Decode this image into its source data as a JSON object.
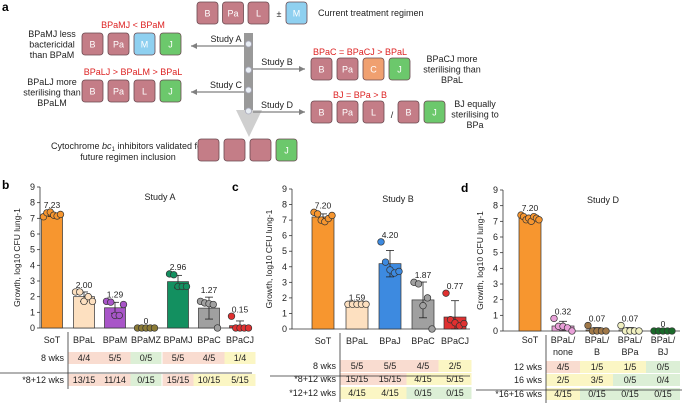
{
  "colors": {
    "drug_box": "#c47d87",
    "M": "#8fd0f0",
    "J": "#6cc86c",
    "C": "#f0a070",
    "cell_pink": "#f9dcd0",
    "cell_green": "#dcefd6",
    "cell_yellow": "#fbf6c4",
    "arrow": "#808080"
  },
  "panel_a": {
    "label": "a",
    "current": {
      "boxes": [
        "B",
        "Pa",
        "L"
      ],
      "plusminus": "±",
      "optional": "M",
      "text": "Current treatment regimen"
    },
    "study_a": {
      "arrow_label": "Study A",
      "comparison": "BPaMJ < BPaM",
      "boxes": [
        "B",
        "Pa",
        "M",
        "J"
      ],
      "note": [
        "BPaMJ less",
        "bactericidal",
        "than BPaM"
      ]
    },
    "study_b": {
      "arrow_label": "Study B",
      "comparison": "BPaC = BPaCJ > BPaL",
      "boxes": [
        "B",
        "Pa",
        "C",
        "J"
      ],
      "note": [
        "BPaCJ more",
        "sterilising than",
        "BPaL"
      ]
    },
    "study_c": {
      "arrow_label": "Study C",
      "comparison": "BPaLJ > BPaLM > BPaL",
      "boxes": [
        "B",
        "Pa",
        "L",
        "J"
      ],
      "note": [
        "BPaLJ more",
        "sterilising than",
        "BPaLM"
      ]
    },
    "study_d": {
      "arrow_label": "Study D",
      "comparison": "BJ = BPa > B",
      "boxes": [
        "B",
        "Pa",
        "L"
      ],
      "slash": "/",
      "boxes2": [
        "B",
        "J"
      ],
      "note": [
        "BJ equally",
        "sterilising to",
        "BPa"
      ]
    },
    "conclusion": {
      "text_pre": "Cytochrome ",
      "text_italic": "bc",
      "text_sub": "1",
      "text_post": " inhibitors validated for",
      "line2": "future regimen inclusion",
      "boxes": [
        "",
        "",
        "",
        "J"
      ]
    }
  },
  "chart_data": [
    {
      "panel": "b",
      "type": "bar",
      "title": "Study A",
      "ylabel": "Growth, log10 CFU lung-1",
      "ylim": [
        0,
        9
      ],
      "yticks": [
        0,
        1,
        2,
        3,
        4,
        5,
        6,
        7,
        8,
        9
      ],
      "categories": [
        "SoT",
        "BPaL",
        "BPaM",
        "BPaMZ",
        "BPaMJ",
        "BPaC",
        "BPaCJ"
      ],
      "values": [
        7.23,
        2.0,
        1.29,
        0,
        2.96,
        1.27,
        0.15
      ],
      "value_labels": [
        "7.23",
        "2.00",
        "1.29",
        "0",
        "2.96",
        "1.27",
        "0.15"
      ],
      "sd": [
        0.12,
        0.3,
        0.35,
        0,
        0.4,
        0.7,
        0.3
      ],
      "points": [
        [
          7.1,
          7.35,
          7.4,
          7.2,
          7.15,
          7.25
        ],
        [
          2.3,
          2.3,
          1.7,
          2.0,
          1.7
        ],
        [
          1.7,
          1.65,
          0.8,
          0.8,
          1.5
        ],
        [
          0,
          0,
          0,
          0,
          0
        ],
        [
          3.45,
          3.4,
          2.65,
          2.65,
          2.65
        ],
        [
          1.7,
          1.6,
          1.55,
          1.5,
          0
        ],
        [
          0.75,
          0,
          0,
          0,
          0
        ]
      ],
      "colors": [
        "#f7962f",
        "#fde0c0",
        "#a855c8",
        "#8a7a35",
        "#139060",
        "#a0a0a0",
        "#e03030"
      ],
      "table": {
        "rows": [
          {
            "label": "8 wks",
            "cells": [
              "4/4",
              "5/5",
              "0/5",
              "5/5",
              "4/5",
              "1/4"
            ],
            "shade": [
              "pink",
              "pink",
              "green",
              "pink",
              "pink",
              "yellow"
            ]
          },
          {
            "label": "*8+12 wks",
            "cells": [
              "13/15",
              "11/14",
              "0/15",
              "15/15",
              "10/15",
              "5/15"
            ],
            "shade": [
              "pink",
              "pink",
              "green",
              "pink",
              "yellow",
              "yellow"
            ]
          }
        ]
      }
    },
    {
      "panel": "c",
      "type": "bar",
      "title": "Study B",
      "ylabel": "Growth, log10 CFU lung-1",
      "ylim": [
        0,
        9
      ],
      "yticks": [
        0,
        1,
        2,
        3,
        4,
        5,
        6,
        7,
        8,
        9
      ],
      "categories": [
        "SoT",
        "BPaL",
        "BPaJ",
        "BPaC",
        "BPaCJ"
      ],
      "values": [
        7.2,
        1.59,
        4.2,
        1.87,
        0.77
      ],
      "value_labels": [
        "7.20",
        "1.59",
        "4.20",
        "1.87",
        "0.77"
      ],
      "sd": [
        0.2,
        0,
        0.85,
        1.15,
        1.05
      ],
      "points": [
        [
          7.5,
          7.4,
          7.0,
          6.9,
          7.1,
          7.3
        ],
        [
          1.59,
          1.59,
          1.59,
          1.59,
          1.59
        ],
        [
          5.6,
          4.3,
          3.8,
          3.6,
          3.7
        ],
        [
          3.0,
          2.9,
          1.5,
          2.0,
          0
        ],
        [
          2.3,
          0.6,
          0.4,
          0.2,
          0.35
        ]
      ],
      "colors": [
        "#f7962f",
        "#fde0c0",
        "#3d8ae0",
        "#a0a0a0",
        "#e03030"
      ],
      "table": {
        "rows": [
          {
            "label": "8 wks",
            "cells": [
              "5/5",
              "5/5",
              "4/5",
              "2/5"
            ],
            "shade": [
              "pink",
              "pink",
              "pink",
              "yellow"
            ]
          },
          {
            "label": "*8+12 wks",
            "cells": [
              "15/15",
              "15/15",
              "4/15",
              "5/15"
            ],
            "shade": [
              "pink",
              "pink",
              "yellow",
              "yellow"
            ]
          },
          {
            "label": "*12+12 wks",
            "cells": [
              "4/15",
              "4/15",
              "0/15",
              "0/15"
            ],
            "shade": [
              "yellow",
              "yellow",
              "green",
              "green"
            ]
          }
        ]
      }
    },
    {
      "panel": "d",
      "type": "bar",
      "title": "Study D",
      "ylabel": "Growth, log10 CFU lung-1",
      "ylim": [
        0,
        9
      ],
      "yticks": [
        0,
        1,
        2,
        3,
        4,
        5,
        6,
        7,
        8,
        9
      ],
      "categories": [
        [
          "SoT"
        ],
        [
          "BPaL/",
          "none"
        ],
        [
          "BPaL/",
          "B"
        ],
        [
          "BPaL/",
          "BPa"
        ],
        [
          "BPaL/",
          "BJ"
        ]
      ],
      "values": [
        7.2,
        0.32,
        0.07,
        0.07,
        0
      ],
      "value_labels": [
        "7.20",
        "0.32",
        "0.07",
        "0.07",
        "0"
      ],
      "sd": [
        0.12,
        0.3,
        0.15,
        0.15,
        0
      ],
      "points": [
        [
          7.4,
          7.3,
          7.1,
          7.2,
          7.0,
          7.3,
          7.2,
          7.1
        ],
        [
          0.8,
          0.3,
          0.3,
          0.2,
          0.0
        ],
        [
          0.35,
          0,
          0,
          0,
          0
        ],
        [
          0.35,
          0,
          0,
          0,
          0
        ],
        [
          0,
          0,
          0,
          0,
          0
        ]
      ],
      "colors": [
        "#f7962f",
        "#e8a0d8",
        "#a07848",
        "#f0f0c0",
        "#1a6a2a"
      ],
      "table": {
        "rows": [
          {
            "label": "12 wks",
            "cells": [
              "4/5",
              "1/5",
              "1/5",
              "0/5"
            ],
            "shade": [
              "pink",
              "yellow",
              "yellow",
              "green"
            ]
          },
          {
            "label": "16 wks",
            "cells": [
              "2/5",
              "3/5",
              "0/5",
              "0/4"
            ],
            "shade": [
              "yellow",
              "yellow",
              "green",
              "green"
            ]
          },
          {
            "label": "*16+16 wks",
            "cells": [
              "4/15",
              "0/15",
              "0/15",
              "0/15"
            ],
            "shade": [
              "yellow",
              "green",
              "green",
              "green"
            ]
          }
        ]
      }
    }
  ]
}
